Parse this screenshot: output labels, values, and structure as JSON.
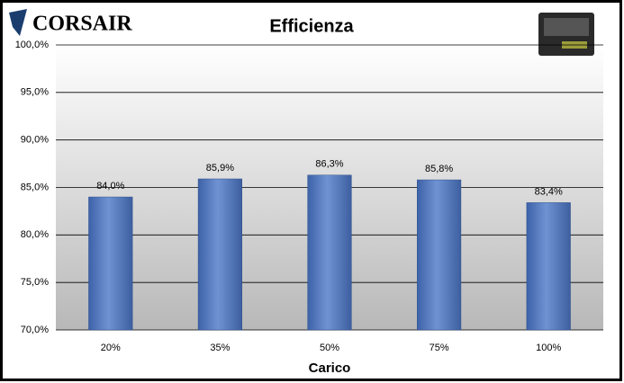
{
  "brand": "CORSAIR",
  "chart_data": {
    "type": "bar",
    "title": "Efficienza",
    "x_label": "Carico",
    "categories": [
      "20%",
      "35%",
      "50%",
      "75%",
      "100%"
    ],
    "values": [
      84.0,
      85.9,
      86.3,
      85.8,
      83.4
    ],
    "value_labels": [
      "84,0%",
      "85,9%",
      "86,3%",
      "85,8%",
      "83,4%"
    ],
    "color": "#4f74b8",
    "ylim": [
      70,
      100
    ],
    "yticks": [
      {
        "value": 70,
        "label": "70,0%"
      },
      {
        "value": 75,
        "label": "75,0%"
      },
      {
        "value": 80,
        "label": "80,0%"
      },
      {
        "value": 85,
        "label": "85,0%"
      },
      {
        "value": 90,
        "label": "90,0%"
      },
      {
        "value": 95,
        "label": "95,0%"
      },
      {
        "value": 100,
        "label": "100,0%"
      }
    ],
    "grid": true
  }
}
